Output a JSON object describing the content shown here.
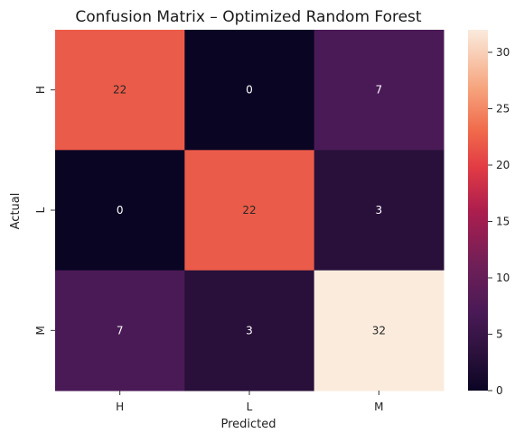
{
  "chart_data": {
    "type": "heatmap",
    "title": "Confusion Matrix – Optimized Random Forest",
    "xlabel": "Predicted",
    "ylabel": "Actual",
    "x_categories": [
      "H",
      "L",
      "M"
    ],
    "y_categories": [
      "H",
      "L",
      "M"
    ],
    "values": [
      [
        22,
        0,
        7
      ],
      [
        0,
        22,
        3
      ],
      [
        7,
        3,
        32
      ]
    ],
    "colormap": "rocket",
    "vmin": 0,
    "vmax": 32,
    "colorbar_ticks": [
      "0",
      "5",
      "10",
      "15",
      "20",
      "25",
      "30"
    ]
  }
}
